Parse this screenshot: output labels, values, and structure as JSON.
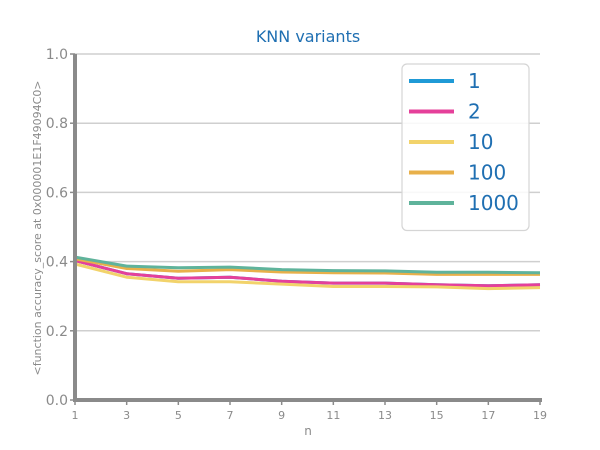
{
  "chart_data": {
    "type": "line",
    "title": "KNN variants",
    "xlabel": "n",
    "ylabel": "<function accuracy_score at 0x000001E1F49094C0>",
    "x": [
      1,
      3,
      5,
      7,
      9,
      11,
      13,
      15,
      17,
      19
    ],
    "xticks": [
      "1",
      "3",
      "5",
      "7",
      "9",
      "11",
      "13",
      "15",
      "17",
      "19"
    ],
    "yticks": [
      "0.0",
      "0.2",
      "0.4",
      "0.6",
      "0.8",
      "1.0"
    ],
    "xlim": [
      1,
      19
    ],
    "ylim": [
      0,
      1
    ],
    "grid": "horizontal",
    "legend_position": "top-right",
    "series": [
      {
        "name": "1",
        "color": "#1f9ad6",
        "values": [
          0.403,
          0.365,
          0.352,
          0.355,
          0.343,
          0.338,
          0.338,
          0.333,
          0.33,
          0.333
        ]
      },
      {
        "name": "2",
        "color": "#e5409a",
        "values": [
          0.403,
          0.365,
          0.352,
          0.355,
          0.343,
          0.338,
          0.338,
          0.333,
          0.33,
          0.333
        ]
      },
      {
        "name": "10",
        "color": "#f2d36b",
        "values": [
          0.393,
          0.355,
          0.342,
          0.342,
          0.335,
          0.328,
          0.328,
          0.327,
          0.322,
          0.325
        ]
      },
      {
        "name": "100",
        "color": "#e8b04a",
        "values": [
          0.408,
          0.38,
          0.372,
          0.377,
          0.37,
          0.368,
          0.367,
          0.363,
          0.363,
          0.363
        ]
      },
      {
        "name": "1000",
        "color": "#5fb39b",
        "values": [
          0.413,
          0.387,
          0.382,
          0.384,
          0.377,
          0.374,
          0.373,
          0.369,
          0.369,
          0.368
        ]
      }
    ]
  }
}
